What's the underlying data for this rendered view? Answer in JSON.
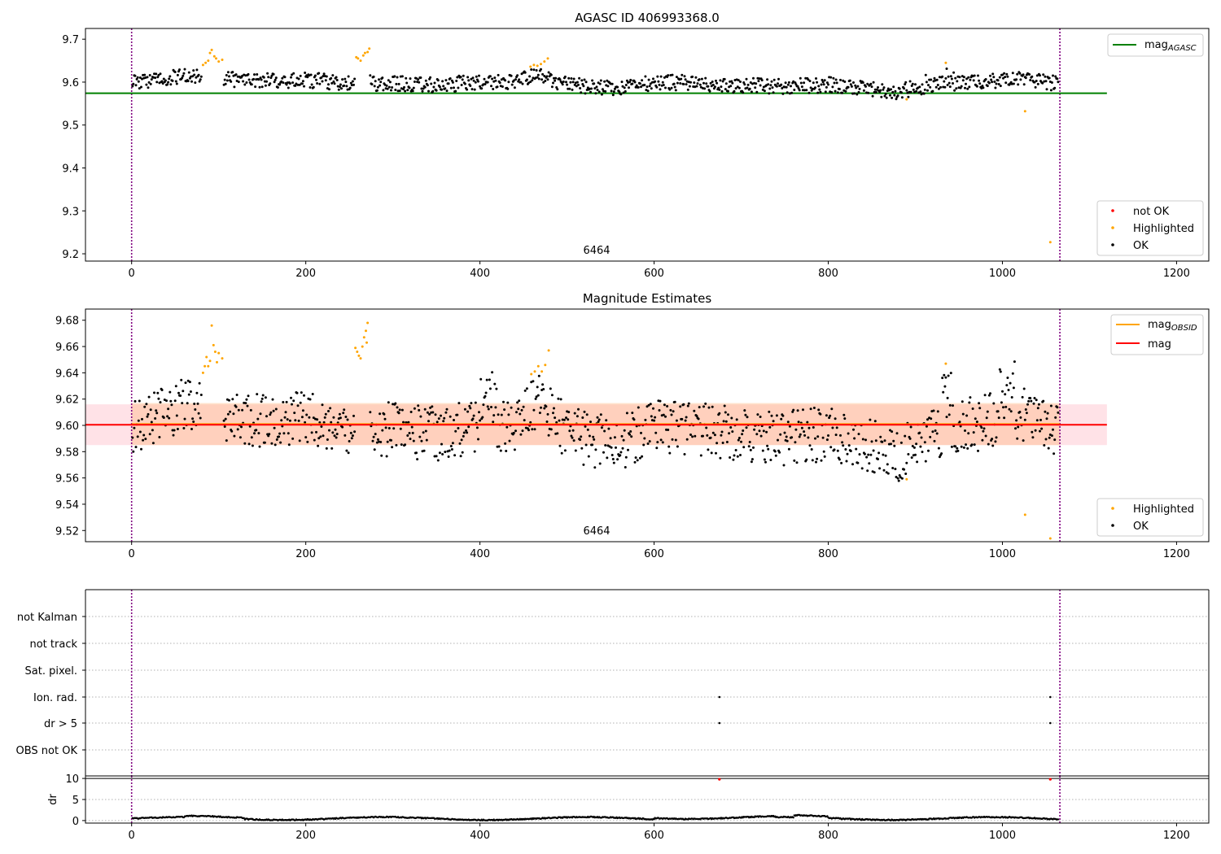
{
  "chart_data": [
    {
      "type": "scatter",
      "title": "AGASC ID 406993368.0",
      "xlabel": "",
      "ylabel": "",
      "xlim": [
        -53,
        1237
      ],
      "ylim": [
        9.183,
        9.725
      ],
      "xticks": [
        0,
        200,
        400,
        600,
        800,
        1000,
        1200
      ],
      "yticks": [
        9.2,
        9.3,
        9.4,
        9.5,
        9.6,
        9.7
      ],
      "ytick_decimals": 1,
      "annotation": "6464",
      "vlines": [
        0,
        1066
      ],
      "hline": {
        "name": "mag",
        "subscript": "AGASC",
        "value": 9.574,
        "x_range": [
          -53,
          1120
        ],
        "color": "#008000"
      },
      "legend_upper": [
        {
          "name": "mag",
          "subscript": "AGASC",
          "kind": "line",
          "color": "#008000"
        }
      ],
      "legend_lower": [
        {
          "name": "not OK",
          "kind": "dot",
          "color": "#ff0000"
        },
        {
          "name": "Highlighted",
          "kind": "dot",
          "color": "#ffa500"
        },
        {
          "name": "OK",
          "kind": "dot",
          "color": "#000000"
        }
      ],
      "series": [
        {
          "name": "OK",
          "color": "#000000",
          "profile": "top"
        },
        {
          "name": "Highlighted",
          "color": "#ffa500",
          "points": [
            [
              82,
              9.64
            ],
            [
              85,
              9.645
            ],
            [
              88,
              9.65
            ],
            [
              90,
              9.668
            ],
            [
              92,
              9.675
            ],
            [
              95,
              9.66
            ],
            [
              97,
              9.655
            ],
            [
              100,
              9.648
            ],
            [
              104,
              9.652
            ],
            [
              258,
              9.658
            ],
            [
              260,
              9.655
            ],
            [
              263,
              9.65
            ],
            [
              266,
              9.662
            ],
            [
              268,
              9.668
            ],
            [
              271,
              9.67
            ],
            [
              273,
              9.678
            ],
            [
              458,
              9.636
            ],
            [
              462,
              9.64
            ],
            [
              466,
              9.638
            ],
            [
              470,
              9.642
            ],
            [
              474,
              9.648
            ],
            [
              478,
              9.655
            ],
            [
              890,
              9.56
            ],
            [
              935,
              9.645
            ],
            [
              1026,
              9.532
            ],
            [
              1055,
              9.227
            ]
          ]
        }
      ]
    },
    {
      "type": "scatter",
      "title": "Magnitude Estimates",
      "xlabel": "",
      "ylabel": "",
      "xlim": [
        -53,
        1237
      ],
      "ylim": [
        9.5115,
        9.6885
      ],
      "xticks": [
        0,
        200,
        400,
        600,
        800,
        1000,
        1200
      ],
      "yticks": [
        9.52,
        9.54,
        9.56,
        9.58,
        9.6,
        9.62,
        9.64,
        9.66,
        9.68
      ],
      "ytick_decimals": 2,
      "annotation": "6464",
      "vlines": [
        0,
        1066
      ],
      "bands": [
        {
          "name": "mag",
          "color": "#ff9fb0",
          "opacity": 0.3,
          "x_range": [
            -53,
            1120
          ],
          "y_range": [
            9.585,
            9.616
          ]
        },
        {
          "name": "mag OBSID",
          "color": "#ffb070",
          "opacity": 0.35,
          "x_range": [
            0,
            1066
          ],
          "y_range": [
            9.585,
            9.617
          ]
        }
      ],
      "lines": [
        {
          "name": "mag OBSID",
          "color": "#ffa500",
          "value": 9.601,
          "x_range": [
            0,
            1066
          ]
        },
        {
          "name": "mag",
          "color": "#ff0000",
          "value": 9.6005,
          "x_range": [
            -53,
            1120
          ]
        }
      ],
      "legend_upper": [
        {
          "name": "mag",
          "subscript": "OBSID",
          "kind": "line",
          "color": "#ffa500"
        },
        {
          "name": "mag",
          "subscript": "",
          "kind": "line",
          "color": "#ff0000"
        }
      ],
      "legend_lower": [
        {
          "name": "Highlighted",
          "kind": "dot",
          "color": "#ffa500"
        },
        {
          "name": "OK",
          "kind": "dot",
          "color": "#000000"
        }
      ],
      "series": [
        {
          "name": "OK",
          "color": "#000000",
          "profile": "middle"
        },
        {
          "name": "Highlighted",
          "color": "#ffa500",
          "points": [
            [
              82,
              9.64
            ],
            [
              84,
              9.645
            ],
            [
              86,
              9.652
            ],
            [
              88,
              9.645
            ],
            [
              90,
              9.649
            ],
            [
              92,
              9.676
            ],
            [
              94,
              9.661
            ],
            [
              96,
              9.656
            ],
            [
              98,
              9.648
            ],
            [
              100,
              9.655
            ],
            [
              104,
              9.651
            ],
            [
              257,
              9.659
            ],
            [
              259,
              9.656
            ],
            [
              261,
              9.653
            ],
            [
              263,
              9.651
            ],
            [
              265,
              9.66
            ],
            [
              267,
              9.667
            ],
            [
              269,
              9.672
            ],
            [
              271,
              9.678
            ],
            [
              270,
              9.663
            ],
            [
              459,
              9.639
            ],
            [
              463,
              9.641
            ],
            [
              467,
              9.645
            ],
            [
              471,
              9.641
            ],
            [
              475,
              9.646
            ],
            [
              479,
              9.657
            ],
            [
              890,
              9.559
            ],
            [
              935,
              9.647
            ],
            [
              1026,
              9.532
            ],
            [
              1055,
              9.514
            ]
          ]
        }
      ]
    },
    {
      "type": "scatter",
      "title": "",
      "xlabel": "",
      "ylabel": "",
      "xlim": [
        -53,
        1237
      ],
      "categories": [
        "not Kalman",
        "not track",
        "Sat. pixel.",
        "Ion. rad.",
        "dr > 5",
        "OBS not OK"
      ],
      "vlines": [
        0,
        1066
      ],
      "series": [
        {
          "name": "Ion. rad.",
          "color": "#000000",
          "points": [
            [
              675,
              1
            ],
            [
              1055,
              1
            ]
          ]
        },
        {
          "name": "dr > 5",
          "color": "#000000",
          "points": [
            [
              675,
              1
            ],
            [
              1055,
              1
            ]
          ]
        }
      ]
    },
    {
      "type": "scatter",
      "title": "",
      "xlabel": "",
      "ylabel": "dr",
      "xlim": [
        -53,
        1237
      ],
      "ylim": [
        -0.6,
        10.6
      ],
      "xticks": [
        0,
        200,
        400,
        600,
        800,
        1000,
        1200
      ],
      "yticks": [
        0,
        5,
        10
      ],
      "vlines": [
        0,
        1066
      ],
      "hline_at": 10,
      "series": [
        {
          "name": "dr",
          "color": "#000000",
          "profile": "dr"
        },
        {
          "name": "not OK",
          "color": "#ff0000",
          "points": [
            [
              675,
              9.8
            ],
            [
              1055,
              9.8
            ]
          ]
        }
      ]
    }
  ]
}
